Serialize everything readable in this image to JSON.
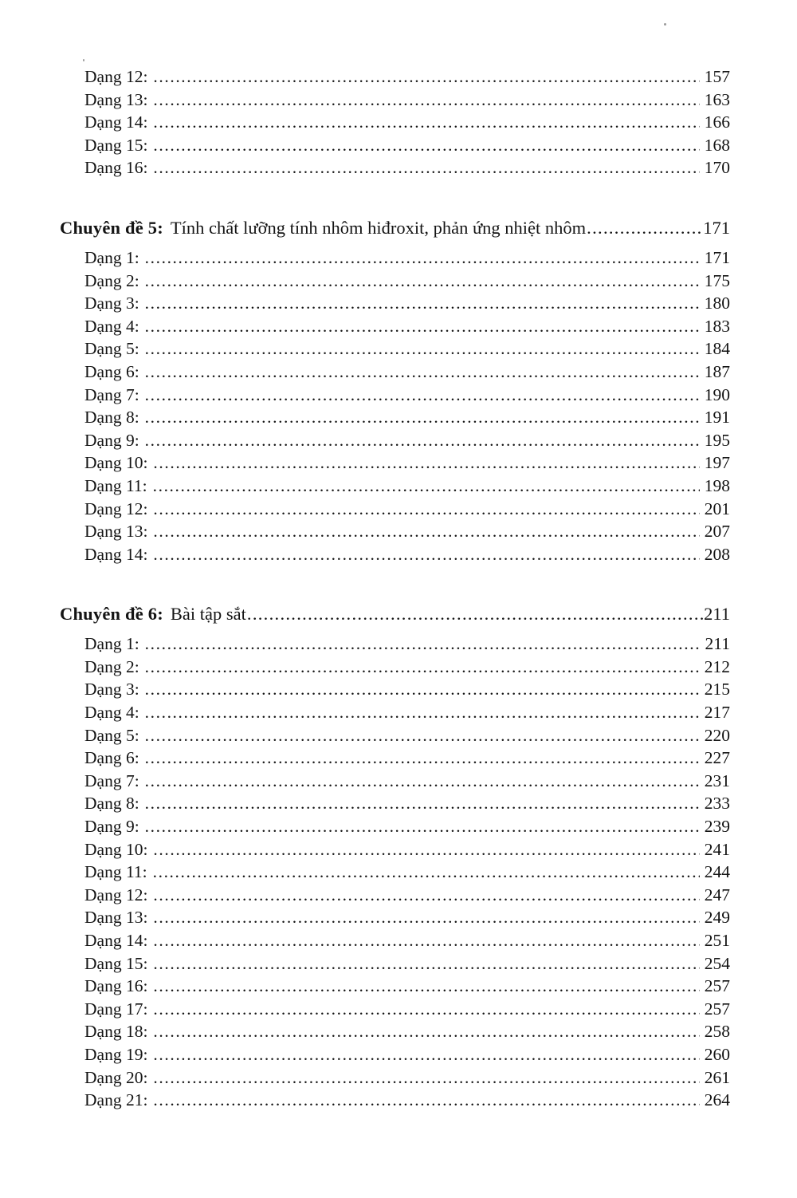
{
  "page": {
    "background": "#ffffff",
    "text_color": "#141414"
  },
  "toc": {
    "sections": [
      {
        "heading": null,
        "items": [
          {
            "label": "Dạng 12:",
            "page": "157"
          },
          {
            "label": "Dạng 13:",
            "page": "163"
          },
          {
            "label": "Dạng 14:",
            "page": "166"
          },
          {
            "label": "Dạng 15:",
            "page": "168"
          },
          {
            "label": "Dạng 16:",
            "page": "170"
          }
        ]
      },
      {
        "heading": {
          "label": "Chuyên đề 5:",
          "title": "Tính chất lưỡng tính nhôm hiđroxit, phản ứng nhiệt nhôm",
          "page": "171"
        },
        "items": [
          {
            "label": "Dạng 1:",
            "page": "171"
          },
          {
            "label": "Dạng 2:",
            "page": "175"
          },
          {
            "label": "Dạng 3:",
            "page": "180"
          },
          {
            "label": "Dạng 4:",
            "page": "183"
          },
          {
            "label": "Dạng 5:",
            "page": "184"
          },
          {
            "label": "Dạng 6:",
            "page": "187"
          },
          {
            "label": "Dạng 7:",
            "page": "190"
          },
          {
            "label": "Dạng 8:",
            "page": "191"
          },
          {
            "label": "Dạng 9:",
            "page": "195"
          },
          {
            "label": "Dạng 10:",
            "page": "197"
          },
          {
            "label": "Dạng 11:",
            "page": "198"
          },
          {
            "label": "Dạng 12:",
            "page": "201"
          },
          {
            "label": "Dạng 13:",
            "page": "207"
          },
          {
            "label": "Dạng 14:",
            "page": "208"
          }
        ]
      },
      {
        "heading": {
          "label": "Chuyên đề 6:",
          "title": "Bài tập sắt",
          "page": "211"
        },
        "items": [
          {
            "label": "Dạng 1:",
            "page": "211"
          },
          {
            "label": "Dạng 2:",
            "page": "212"
          },
          {
            "label": "Dạng 3:",
            "page": "215"
          },
          {
            "label": "Dạng 4:",
            "page": "217"
          },
          {
            "label": "Dạng 5:",
            "page": "220"
          },
          {
            "label": "Dạng 6:",
            "page": "227"
          },
          {
            "label": "Dạng 7:",
            "page": "231"
          },
          {
            "label": "Dạng 8:",
            "page": "233"
          },
          {
            "label": "Dạng 9:",
            "page": "239"
          },
          {
            "label": "Dạng 10:",
            "page": "241"
          },
          {
            "label": "Dạng 11:",
            "page": "244"
          },
          {
            "label": "Dạng 12:",
            "page": "247"
          },
          {
            "label": "Dạng 13:",
            "page": "249"
          },
          {
            "label": "Dạng 14:",
            "page": "251"
          },
          {
            "label": "Dạng 15:",
            "page": "254"
          },
          {
            "label": "Dạng 16:",
            "page": "257"
          },
          {
            "label": "Dạng 17:",
            "page": "257"
          },
          {
            "label": "Dạng 18:",
            "page": "258"
          },
          {
            "label": "Dạng 19:",
            "page": "260"
          },
          {
            "label": "Dạng 20:",
            "page": "261"
          },
          {
            "label": "Dạng 21:",
            "page": "264"
          }
        ]
      }
    ]
  }
}
